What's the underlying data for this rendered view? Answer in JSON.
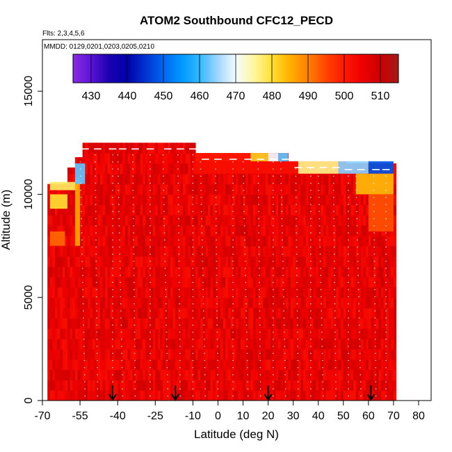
{
  "chart_data": {
    "type": "heatmap",
    "title": "ATOM2 Southbound CFC12_PECD",
    "flights_label": "Flts: 2,3,4,5,6",
    "dates_label": "MMDD: 0129,0201,0203,0205,0210",
    "xlabel": "Latitude (deg N)",
    "ylabel": "Altitude (m)",
    "xlim": [
      -70,
      85
    ],
    "ylim": [
      0,
      17500
    ],
    "x_ticks": [
      -70,
      -55,
      -40,
      -25,
      -10,
      0,
      10,
      20,
      30,
      40,
      50,
      60,
      70,
      80
    ],
    "y_ticks": [
      0,
      5000,
      10000,
      15000
    ],
    "colorbar": {
      "range": [
        425,
        515
      ],
      "ticks": [
        430,
        440,
        450,
        460,
        470,
        480,
        490,
        500,
        510
      ],
      "colors": [
        {
          "value": 425,
          "color": "#8a2be2"
        },
        {
          "value": 430,
          "color": "#5a14d8"
        },
        {
          "value": 435,
          "color": "#1a00b0"
        },
        {
          "value": 440,
          "color": "#0000a8"
        },
        {
          "value": 445,
          "color": "#0033d0"
        },
        {
          "value": 450,
          "color": "#0066f0"
        },
        {
          "value": 455,
          "color": "#0099ff"
        },
        {
          "value": 460,
          "color": "#33b8ff"
        },
        {
          "value": 465,
          "color": "#9fd6ff"
        },
        {
          "value": 470,
          "color": "#f4fbff"
        },
        {
          "value": 475,
          "color": "#fff6a0"
        },
        {
          "value": 480,
          "color": "#ffe033"
        },
        {
          "value": 485,
          "color": "#ffb000"
        },
        {
          "value": 490,
          "color": "#ff8000"
        },
        {
          "value": 495,
          "color": "#ff4400"
        },
        {
          "value": 500,
          "color": "#ff1800"
        },
        {
          "value": 505,
          "color": "#ee0000"
        },
        {
          "value": 510,
          "color": "#cc0000"
        },
        {
          "value": 515,
          "color": "#a51a1a"
        }
      ]
    },
    "field": {
      "lat_range": [
        -68,
        71
      ],
      "alt_max_by_lat": [
        [
          -68,
          10500
        ],
        [
          -62,
          10500
        ],
        [
          -60,
          11300
        ],
        [
          -57,
          11800
        ],
        [
          -54,
          12500
        ],
        [
          -10,
          12500
        ],
        [
          -9,
          12000
        ],
        [
          17,
          12000
        ],
        [
          28,
          11600
        ],
        [
          51,
          11500
        ],
        [
          70,
          11500
        ]
      ],
      "background_value": 506,
      "features": [
        {
          "lat": [
            -67,
            -56
          ],
          "alt": [
            10200,
            10600
          ],
          "value": 478
        },
        {
          "lat": [
            -67,
            -60
          ],
          "alt": [
            9300,
            10000
          ],
          "value": 480
        },
        {
          "lat": [
            -67,
            -61
          ],
          "alt": [
            7500,
            8200
          ],
          "value": 492
        },
        {
          "lat": [
            -57,
            -55
          ],
          "alt": [
            7500,
            10800
          ],
          "value": 486
        },
        {
          "lat": [
            -57,
            -53
          ],
          "alt": [
            10500,
            11500
          ],
          "value": 462
        },
        {
          "lat": [
            -9,
            13
          ],
          "alt": [
            11600,
            12000
          ],
          "value": 500
        },
        {
          "lat": [
            13,
            20
          ],
          "alt": [
            11600,
            12000
          ],
          "value": 482
        },
        {
          "lat": [
            20,
            24
          ],
          "alt": [
            11600,
            12000
          ],
          "value": 470
        },
        {
          "lat": [
            24,
            28
          ],
          "alt": [
            11600,
            12000
          ],
          "value": 462
        },
        {
          "lat": [
            -9,
            32
          ],
          "alt": [
            11000,
            11600
          ],
          "value": 502
        },
        {
          "lat": [
            32,
            48
          ],
          "alt": [
            11000,
            11600
          ],
          "value": 476
        },
        {
          "lat": [
            48,
            60
          ],
          "alt": [
            11000,
            11600
          ],
          "value": 464
        },
        {
          "lat": [
            60,
            70
          ],
          "alt": [
            11000,
            11600
          ],
          "value": 448
        },
        {
          "lat": [
            55,
            70
          ],
          "alt": [
            10000,
            11000
          ],
          "value": 484
        },
        {
          "lat": [
            60,
            70
          ],
          "alt": [
            8200,
            10000
          ],
          "value": 494
        }
      ]
    },
    "flight_track_latitudes": [
      -53,
      -48,
      -42,
      -38,
      -33,
      -27,
      -20,
      -15,
      -10,
      -5,
      0,
      6,
      12,
      17,
      22,
      27,
      32,
      37,
      42,
      47,
      52,
      57,
      63,
      67
    ],
    "arrows_at_latitude": [
      -42,
      -17,
      20,
      61
    ]
  }
}
